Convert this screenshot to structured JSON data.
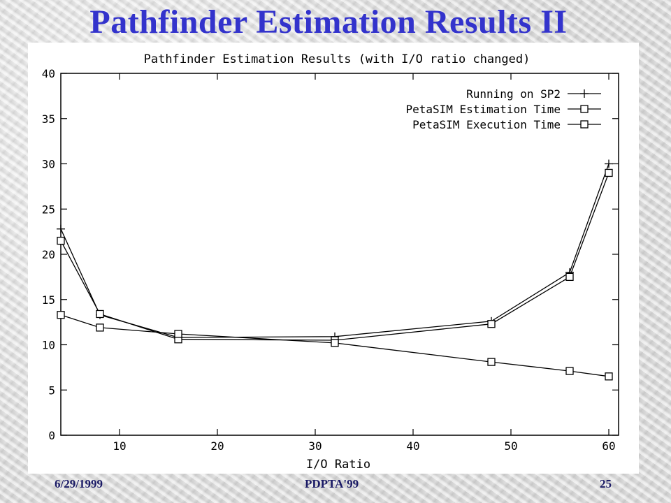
{
  "slide": {
    "title": "Pathfinder Estimation Results II"
  },
  "footer": {
    "date": "6/29/1999",
    "conference": "PDPTA'99",
    "page": "25"
  },
  "colors": {
    "title": "#3333cc",
    "footer": "#1a1a66",
    "plot_ink": "#000000"
  },
  "chart_data": {
    "type": "line",
    "title": "Pathfinder Estimation Results (with I/O ratio changed)",
    "xlabel": "I/O Ratio",
    "ylabel": "",
    "xlim": [
      4,
      61
    ],
    "ylim": [
      0,
      40
    ],
    "xticks": [
      10,
      20,
      30,
      40,
      50,
      60
    ],
    "yticks": [
      0,
      5,
      10,
      15,
      20,
      25,
      30,
      35,
      40
    ],
    "grid": false,
    "legend_position": "top-right",
    "series": [
      {
        "name": "Running on SP2",
        "marker": "plus",
        "x": [
          4,
          8,
          16,
          32,
          48,
          56,
          60
        ],
        "y": [
          22.8,
          13.3,
          10.8,
          10.9,
          12.6,
          18.0,
          30.0
        ]
      },
      {
        "name": "PetaSIM Estimation Time",
        "marker": "square",
        "x": [
          4,
          8,
          16,
          32,
          48,
          56,
          60
        ],
        "y": [
          21.5,
          13.4,
          10.6,
          10.5,
          12.3,
          17.5,
          29.0
        ]
      },
      {
        "name": "PetaSIM Execution Time",
        "marker": "square",
        "x": [
          4,
          8,
          16,
          32,
          48,
          56,
          60
        ],
        "y": [
          13.3,
          11.9,
          11.2,
          10.2,
          8.1,
          7.1,
          6.5
        ]
      }
    ]
  }
}
